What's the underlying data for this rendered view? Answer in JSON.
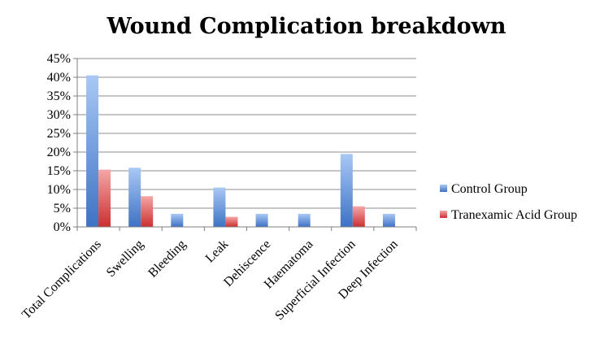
{
  "chart_data": {
    "type": "bar",
    "title": "Wound Complication breakdown",
    "xlabel": "",
    "ylabel": "",
    "ylim": [
      0,
      0.45
    ],
    "y_ticks": [
      "0%",
      "5%",
      "10%",
      "15%",
      "20%",
      "25%",
      "30%",
      "35%",
      "40%",
      "45%"
    ],
    "grid": true,
    "legend_position": "right",
    "categories": [
      "Total Complications",
      "Swelling",
      "Bleeding",
      "Leak",
      "Dehiscence",
      "Haematoma",
      "Superficial Infection",
      "Deep Infection"
    ],
    "series": [
      {
        "name": "Control Group",
        "color": "#4f81bd",
        "values": [
          0.405,
          0.158,
          0.035,
          0.105,
          0.035,
          0.035,
          0.195,
          0.035
        ]
      },
      {
        "name": "Tranexamic Acid Group",
        "color": "#d9534f",
        "values": [
          0.153,
          0.082,
          0,
          0.027,
          0,
          0,
          0.055,
          0
        ]
      }
    ]
  }
}
